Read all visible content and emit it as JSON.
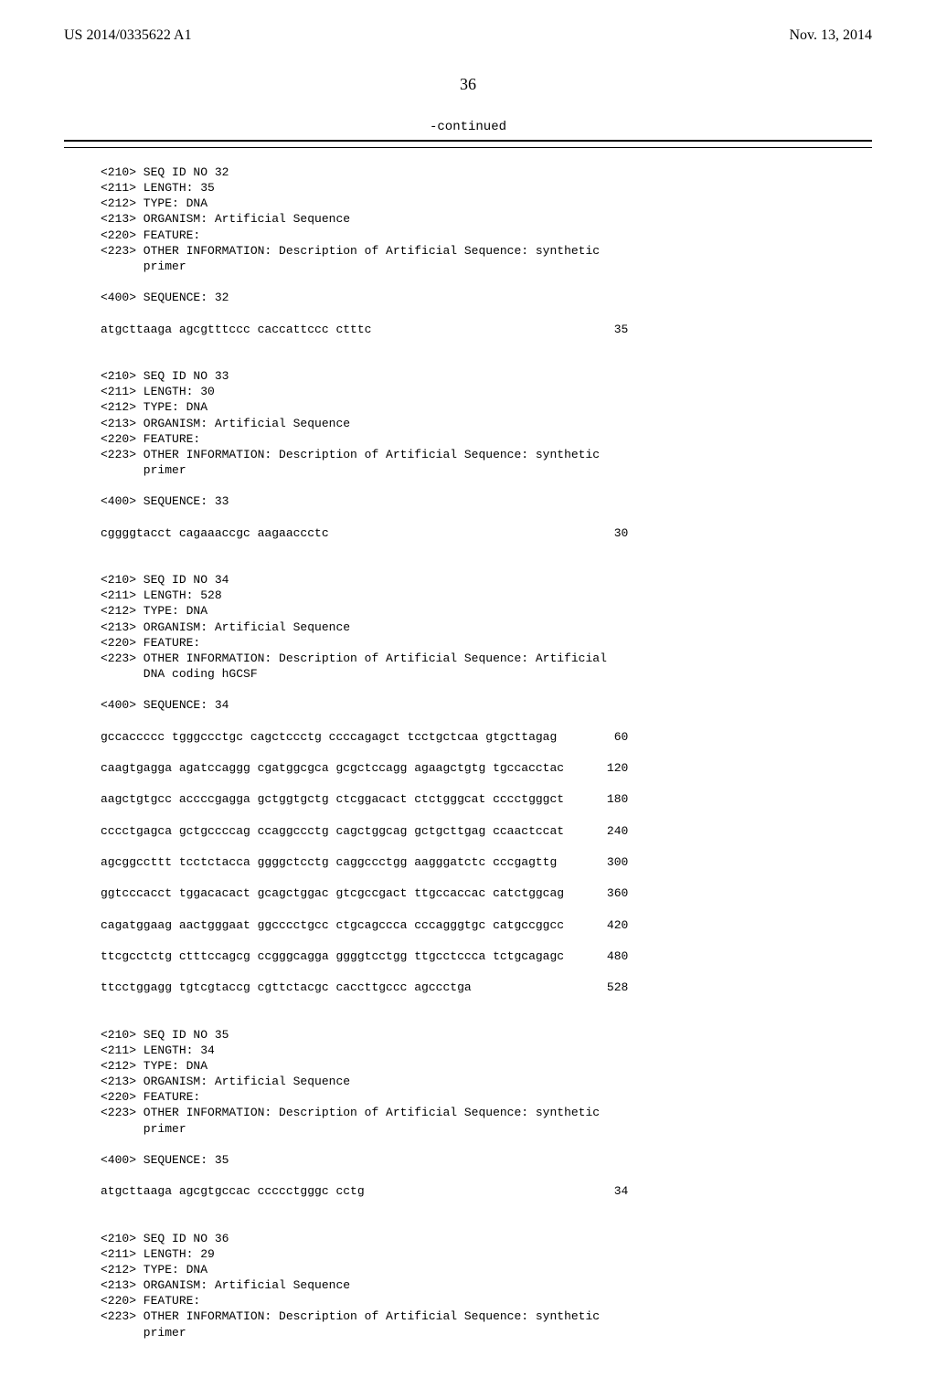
{
  "header": {
    "left": "US 2014/0335622 A1",
    "right": "Nov. 13, 2014"
  },
  "pagenum": "36",
  "continued": "-continued",
  "entries": [
    {
      "meta": [
        "<210> SEQ ID NO 32",
        "<211> LENGTH: 35",
        "<212> TYPE: DNA",
        "<213> ORGANISM: Artificial Sequence",
        "<220> FEATURE:",
        "<223> OTHER INFORMATION: Description of Artificial Sequence: synthetic",
        "      primer"
      ],
      "seqlabel": "<400> SEQUENCE: 32",
      "lines": [
        {
          "seq": "atgcttaaga agcgtttccc caccattccc ctttc",
          "num": "35"
        }
      ]
    },
    {
      "meta": [
        "<210> SEQ ID NO 33",
        "<211> LENGTH: 30",
        "<212> TYPE: DNA",
        "<213> ORGANISM: Artificial Sequence",
        "<220> FEATURE:",
        "<223> OTHER INFORMATION: Description of Artificial Sequence: synthetic",
        "      primer"
      ],
      "seqlabel": "<400> SEQUENCE: 33",
      "lines": [
        {
          "seq": "cggggtacct cagaaaccgc aagaaccctc",
          "num": "30"
        }
      ]
    },
    {
      "meta": [
        "<210> SEQ ID NO 34",
        "<211> LENGTH: 528",
        "<212> TYPE: DNA",
        "<213> ORGANISM: Artificial Sequence",
        "<220> FEATURE:",
        "<223> OTHER INFORMATION: Description of Artificial Sequence: Artificial",
        "      DNA coding hGCSF"
      ],
      "seqlabel": "<400> SEQUENCE: 34",
      "lines": [
        {
          "seq": "gccaccccc tgggccctgc cagctccctg ccccagagct tcctgctcaa gtgcttagag",
          "num": "60"
        },
        {
          "seq": "caagtgagga agatccaggg cgatggcgca gcgctccagg agaagctgtg tgccacctac",
          "num": "120"
        },
        {
          "seq": "aagctgtgcc accccgagga gctggtgctg ctcggacact ctctgggcat cccctgggct",
          "num": "180"
        },
        {
          "seq": "cccctgagca gctgccccag ccaggccctg cagctggcag gctgcttgag ccaactccat",
          "num": "240"
        },
        {
          "seq": "agcggccttt tcctctacca ggggctcctg caggccctgg aagggatctc cccgagttg",
          "num": "300"
        },
        {
          "seq": "ggtcccacct tggacacact gcagctggac gtcgccgact ttgccaccac catctggcag",
          "num": "360"
        },
        {
          "seq": "cagatggaag aactgggaat ggcccctgcc ctgcagccca cccagggtgc catgccggcc",
          "num": "420"
        },
        {
          "seq": "ttcgcctctg ctttccagcg ccgggcagga ggggtcctgg ttgcctccca tctgcagagc",
          "num": "480"
        },
        {
          "seq": "ttcctggagg tgtcgtaccg cgttctacgc caccttgccc agccctga",
          "num": "528"
        }
      ]
    },
    {
      "meta": [
        "<210> SEQ ID NO 35",
        "<211> LENGTH: 34",
        "<212> TYPE: DNA",
        "<213> ORGANISM: Artificial Sequence",
        "<220> FEATURE:",
        "<223> OTHER INFORMATION: Description of Artificial Sequence: synthetic",
        "      primer"
      ],
      "seqlabel": "<400> SEQUENCE: 35",
      "lines": [
        {
          "seq": "atgcttaaga agcgtgccac ccccctgggc cctg",
          "num": "34"
        }
      ]
    },
    {
      "meta": [
        "<210> SEQ ID NO 36",
        "<211> LENGTH: 29",
        "<212> TYPE: DNA",
        "<213> ORGANISM: Artificial Sequence",
        "<220> FEATURE:",
        "<223> OTHER INFORMATION: Description of Artificial Sequence: synthetic",
        "      primer"
      ],
      "seqlabel": "",
      "lines": []
    }
  ]
}
